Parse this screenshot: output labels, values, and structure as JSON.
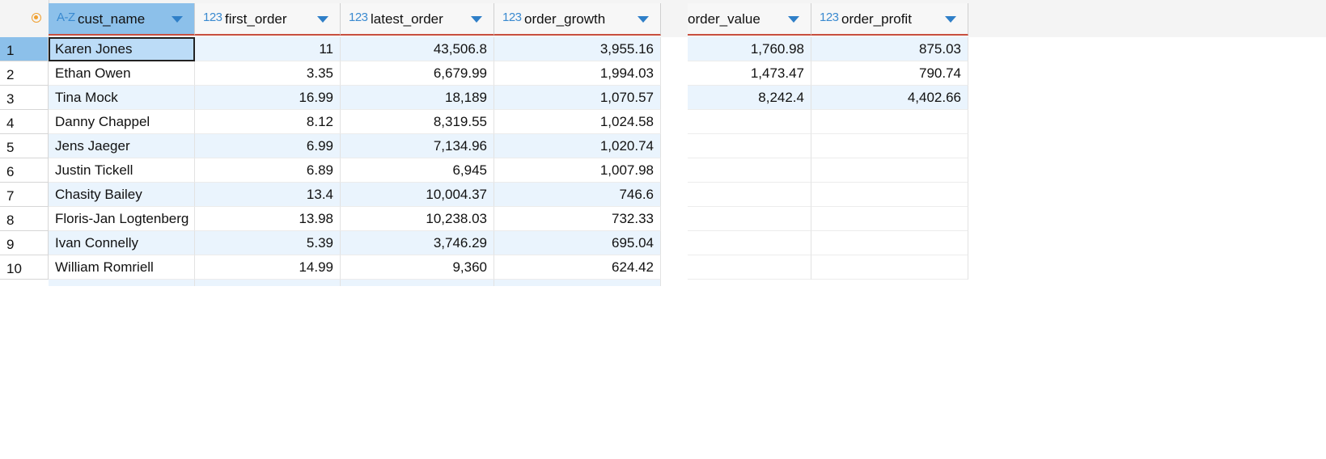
{
  "columns": [
    {
      "name": "cust_name",
      "type_icon": "A-Z",
      "icon_name": "text-type-icon"
    },
    {
      "name": "first_order",
      "type_icon": "123",
      "icon_name": "numeric-type-icon"
    },
    {
      "name": "latest_order",
      "type_icon": "123",
      "icon_name": "numeric-type-icon"
    },
    {
      "name": "order_growth",
      "type_icon": "123",
      "icon_name": "numeric-type-icon"
    },
    {
      "name": "order_value",
      "type_icon": "",
      "icon_name": ""
    },
    {
      "name": "order_profit",
      "type_icon": "123",
      "icon_name": "numeric-type-icon"
    }
  ],
  "rows": [
    {
      "num": "1",
      "cust_name": "Karen Jones",
      "first_order": "11",
      "latest_order": "43,506.8",
      "order_growth": "3,955.16",
      "order_value": "1,760.98",
      "order_profit": "875.03"
    },
    {
      "num": "2",
      "cust_name": "Ethan Owen",
      "first_order": "3.35",
      "latest_order": "6,679.99",
      "order_growth": "1,994.03",
      "order_value": "1,473.47",
      "order_profit": "790.74"
    },
    {
      "num": "3",
      "cust_name": "Tina Mock",
      "first_order": "16.99",
      "latest_order": "18,189",
      "order_growth": "1,070.57",
      "order_value": "8,242.4",
      "order_profit": "4,402.66"
    },
    {
      "num": "4",
      "cust_name": "Danny Chappel",
      "first_order": "8.12",
      "latest_order": "8,319.55",
      "order_growth": "1,024.58",
      "order_value": "",
      "order_profit": ""
    },
    {
      "num": "5",
      "cust_name": "Jens Jaeger",
      "first_order": "6.99",
      "latest_order": "7,134.96",
      "order_growth": "1,020.74",
      "order_value": "",
      "order_profit": ""
    },
    {
      "num": "6",
      "cust_name": "Justin Tickell",
      "first_order": "6.89",
      "latest_order": "6,945",
      "order_growth": "1,007.98",
      "order_value": "",
      "order_profit": ""
    },
    {
      "num": "7",
      "cust_name": "Chasity Bailey",
      "first_order": "13.4",
      "latest_order": "10,004.37",
      "order_growth": "746.6",
      "order_value": "",
      "order_profit": ""
    },
    {
      "num": "8",
      "cust_name": "Floris-Jan Logtenberg",
      "first_order": "13.98",
      "latest_order": "10,238.03",
      "order_growth": "732.33",
      "order_value": "",
      "order_profit": ""
    },
    {
      "num": "9",
      "cust_name": "Ivan Connelly",
      "first_order": "5.39",
      "latest_order": "3,746.29",
      "order_growth": "695.04",
      "order_value": "",
      "order_profit": ""
    },
    {
      "num": "10",
      "cust_name": "William Romriell",
      "first_order": "14.99",
      "latest_order": "9,360",
      "order_growth": "624.42",
      "order_value": "",
      "order_profit": ""
    }
  ],
  "selected_row": "1",
  "colors": {
    "selected_header": "#8cc0ea",
    "alt_row": "#eaf4fd",
    "active_cell": "#bcdcf7",
    "header_underline": "#c85040",
    "type_icon": "#3a8ad0",
    "row_marker": "#f0a030"
  }
}
